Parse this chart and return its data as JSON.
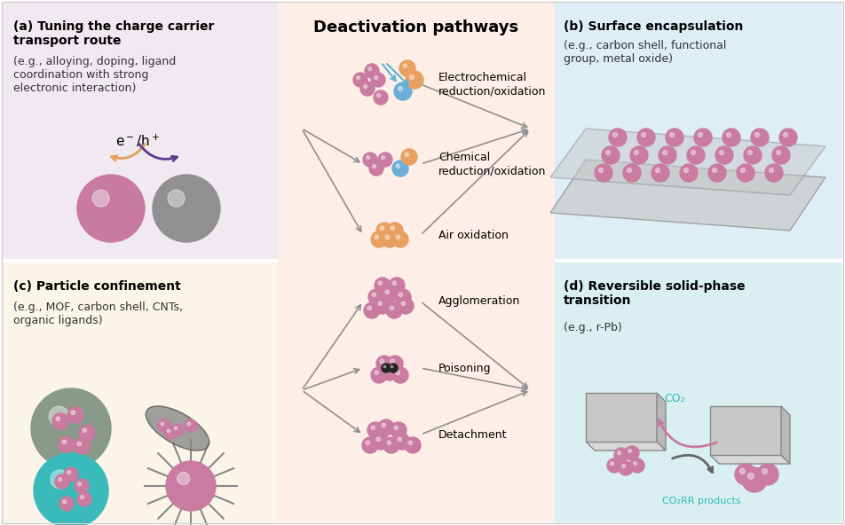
{
  "bg_color": "#ffffff",
  "panel_a_bg": "#f0eaf0",
  "panel_b_bg": "#deeef5",
  "panel_c_bg": "#faf5e8",
  "panel_d_bg": "#daf0f0",
  "center_bg": "#fdeee8",
  "panel_a_title": "(a) Tuning the charge carrier\ntransport route",
  "panel_a_sub": "(e.g., alloying, doping, ligand\ncoordination with strong\nelectronic interaction)",
  "panel_b_title": "(b) Surface encapsulation",
  "panel_b_sub": "(e.g., carbon shell, functional\ngroup, metal oxide)",
  "panel_c_title": "(c) Particle confinement",
  "panel_c_sub": "(e.g., MOF, carbon shell, CNTs,\norganic ligands)",
  "panel_d_title": "(d) Reversible solid-phase\ntransition",
  "panel_d_sub": "(e.g., r-Pb)",
  "center_title": "Deactivation pathways",
  "pathways": [
    "Electrochemical\nreduction/oxidation",
    "Chemical\nreduction/oxidation",
    "Air oxidation",
    "Agglomeration",
    "Poisoning",
    "Detachment"
  ],
  "pink_color": "#c97ba0",
  "gray_sphere": "#909090",
  "orange_color": "#e8a060",
  "blue_color": "#6baed6",
  "teal_color": "#2bbaba",
  "arrow_color": "#909090",
  "arrow_blue": "#5ab4d6"
}
